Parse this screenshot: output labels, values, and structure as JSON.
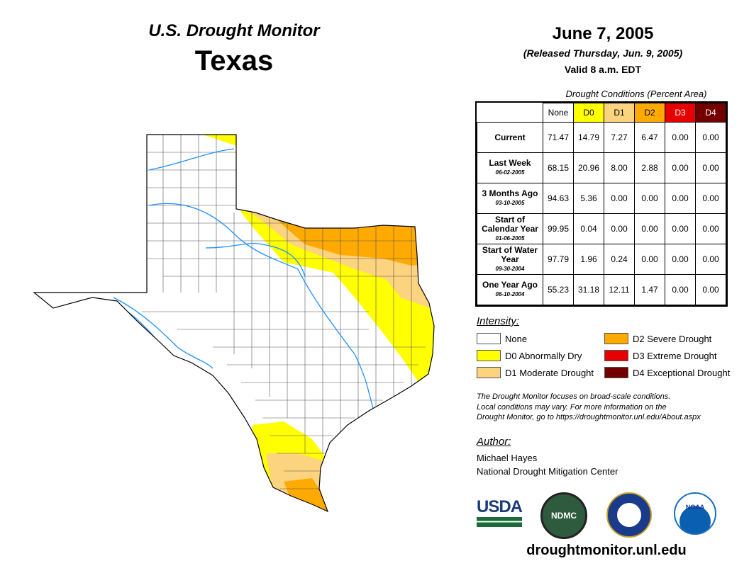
{
  "header": {
    "title": "U.S. Drought Monitor",
    "region": "Texas",
    "date": "June 7, 2005",
    "released": "(Released Thursday, Jun. 9, 2005)",
    "valid": "Valid 8 a.m. EDT"
  },
  "table": {
    "caption": "Drought Conditions (Percent Area)",
    "columns": [
      {
        "label": "None",
        "color": "#ffffff",
        "text": "#000"
      },
      {
        "label": "D0",
        "color": "#ffff00",
        "text": "#000"
      },
      {
        "label": "D1",
        "color": "#fcd37f",
        "text": "#000"
      },
      {
        "label": "D2",
        "color": "#ffaa00",
        "text": "#000"
      },
      {
        "label": "D3",
        "color": "#e60000",
        "text": "#fff"
      },
      {
        "label": "D4",
        "color": "#730000",
        "text": "#fff"
      }
    ],
    "rows": [
      {
        "label": "Current",
        "sub": "",
        "values": [
          "71.47",
          "14.79",
          "7.27",
          "6.47",
          "0.00",
          "0.00"
        ]
      },
      {
        "label": "Last Week",
        "sub": "06-02-2005",
        "values": [
          "68.15",
          "20.96",
          "8.00",
          "2.88",
          "0.00",
          "0.00"
        ]
      },
      {
        "label": "3 Months Ago",
        "sub": "03-10-2005",
        "values": [
          "94.63",
          "5.36",
          "0.00",
          "0.00",
          "0.00",
          "0.00"
        ]
      },
      {
        "label": "Start of Calendar Year",
        "sub": "01-06-2005",
        "values": [
          "99.95",
          "0.04",
          "0.00",
          "0.00",
          "0.00",
          "0.00"
        ]
      },
      {
        "label": "Start of Water Year",
        "sub": "09-30-2004",
        "values": [
          "97.79",
          "1.96",
          "0.24",
          "0.00",
          "0.00",
          "0.00"
        ]
      },
      {
        "label": "One Year Ago",
        "sub": "06-10-2004",
        "values": [
          "55.23",
          "31.18",
          "12.11",
          "1.47",
          "0.00",
          "0.00"
        ]
      }
    ]
  },
  "legend": {
    "title": "Intensity:",
    "items": [
      {
        "label": "None",
        "color": "#ffffff"
      },
      {
        "label": "D0 Abnormally Dry",
        "color": "#ffff00"
      },
      {
        "label": "D1 Moderate Drought",
        "color": "#fcd37f"
      },
      {
        "label": "D2 Severe Drought",
        "color": "#ffaa00"
      },
      {
        "label": "D3 Extreme Drought",
        "color": "#e60000"
      },
      {
        "label": "D4 Exceptional Drought",
        "color": "#730000"
      }
    ]
  },
  "note": [
    "The Drought Monitor focuses on broad-scale conditions.",
    "Local conditions may vary. For more information on the",
    "Drought Monitor, go to https://droughtmonitor.unl.edu/About.aspx"
  ],
  "author": {
    "title": "Author:",
    "name": "Michael Hayes",
    "org": "National Drought Mitigation Center"
  },
  "logos": {
    "usda": "USDA",
    "ndmc": "NDMC",
    "noaa": "NOAA"
  },
  "url": "droughtmonitor.unl.edu"
}
